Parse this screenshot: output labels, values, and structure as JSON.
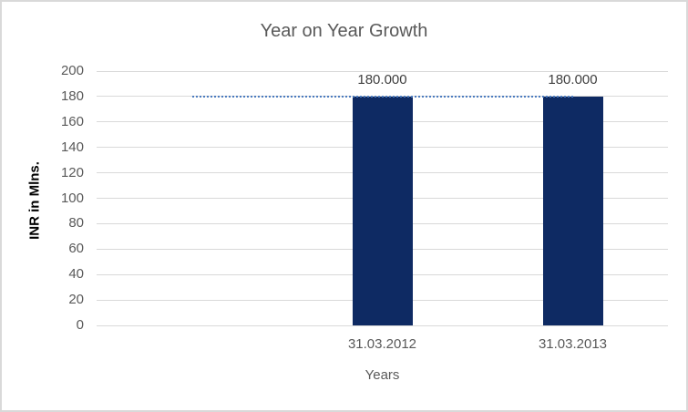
{
  "chart_data": {
    "type": "bar",
    "title": "Year on Year Growth",
    "xlabel": "Years",
    "ylabel": "INR in Mlns.",
    "categories": [
      "31.03.2012",
      "31.03.2013"
    ],
    "values": [
      180,
      180
    ],
    "data_labels": [
      "180.000",
      "180.000"
    ],
    "yticks": [
      0,
      20,
      40,
      60,
      80,
      100,
      120,
      140,
      160,
      180,
      200
    ],
    "ylim": [
      0,
      200
    ],
    "grid": true,
    "legend": "none",
    "reference_line": {
      "value": 180,
      "style": "dotted"
    },
    "layout_hints": {
      "category_slots": 3,
      "bar_slot_indices": [
        1,
        2
      ],
      "line_span_slots": [
        0,
        2
      ]
    },
    "colors": {
      "bar": "#0E2A63",
      "reference_line": "#4C7CC0",
      "gridline": "#D9D9D9",
      "border": "#D9D9D9",
      "background": "#FFFFFF",
      "title_text": "#595959",
      "tick_text": "#595959",
      "axis_title_x": "#595959",
      "axis_title_y": "#000000",
      "data_label_text": "#404040"
    }
  }
}
